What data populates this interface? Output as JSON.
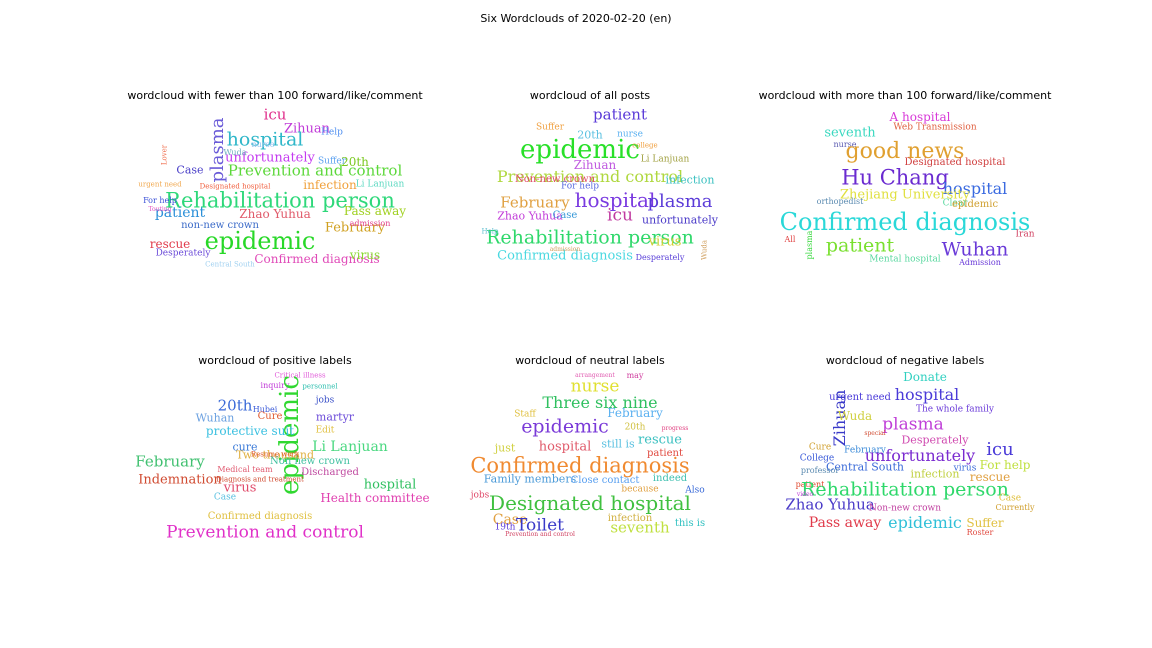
{
  "title": "Six Wordclouds of 2020-02-20 (en)",
  "chart_data": [
    {
      "type": "wordcloud",
      "title": "wordcloud with fewer than 100 forward/like/comment",
      "words": [
        {
          "t": "icu",
          "c": "#e0308c",
          "s": 15
        },
        {
          "t": "Zihuan",
          "c": "#c03ad8",
          "s": 13
        },
        {
          "t": "hospital",
          "c": "#2fb7c9",
          "s": 19
        },
        {
          "t": "Help",
          "c": "#4f8ff0",
          "s": 9
        },
        {
          "t": "plasma",
          "c": "#6a5bd8",
          "s": 18,
          "v": true
        },
        {
          "t": "unfortunately",
          "c": "#c43af0",
          "s": 13
        },
        {
          "t": "20th",
          "c": "#7ac81f",
          "s": 12
        },
        {
          "t": "Case",
          "c": "#4a3fc8",
          "s": 11
        },
        {
          "t": "Prevention and control",
          "c": "#5cd83a",
          "s": 15
        },
        {
          "t": "infection",
          "c": "#f0a03a",
          "s": 12
        },
        {
          "t": "Li Lanjuan",
          "c": "#5ad8c0",
          "s": 9
        },
        {
          "t": "Rehabilitation person",
          "c": "#2ed87a",
          "s": 21
        },
        {
          "t": "patient",
          "c": "#2a8fd8",
          "s": 14
        },
        {
          "t": "Zhao Yuhua",
          "c": "#e05a6a",
          "s": 12
        },
        {
          "t": "Pass away",
          "c": "#a0d020",
          "s": 12
        },
        {
          "t": "non-new crown",
          "c": "#3a6ac8",
          "s": 10
        },
        {
          "t": "February",
          "c": "#d0a020",
          "s": 13
        },
        {
          "t": "epidemic",
          "c": "#28d828",
          "s": 24
        },
        {
          "t": "rescue",
          "c": "#e03a4a",
          "s": 12
        },
        {
          "t": "Desperately",
          "c": "#6a4ad8",
          "s": 9
        },
        {
          "t": "Confirmed diagnosis",
          "c": "#e04ab8",
          "s": 12
        },
        {
          "t": "virus",
          "c": "#8ad830",
          "s": 12
        },
        {
          "t": "admission",
          "c": "#e0408a",
          "s": 8
        },
        {
          "t": "For help",
          "c": "#3a50d8",
          "s": 8
        },
        {
          "t": "urgent need",
          "c": "#f0a850",
          "s": 7
        },
        {
          "t": "Lover",
          "c": "#f07050",
          "s": 7,
          "v": true
        },
        {
          "t": "Suffer",
          "c": "#5aa0f0",
          "s": 9
        },
        {
          "t": "nurse",
          "c": "#90c0f0",
          "s": 8
        },
        {
          "t": "Wuda",
          "c": "#70b0c0",
          "s": 8
        },
        {
          "t": "Central South",
          "c": "#a0d0f0",
          "s": 7
        },
        {
          "t": "Designated hospital",
          "c": "#f06040",
          "s": 7
        },
        {
          "t": "Touting",
          "c": "#e050c0",
          "s": 6
        }
      ]
    },
    {
      "type": "wordcloud",
      "title": "wordcloud of all posts",
      "words": [
        {
          "t": "patient",
          "c": "#5a3ad8",
          "s": 15
        },
        {
          "t": "Suffer",
          "c": "#f0a040",
          "s": 9
        },
        {
          "t": "20th",
          "c": "#5ac0e0",
          "s": 11
        },
        {
          "t": "nurse",
          "c": "#5ab0f0",
          "s": 9
        },
        {
          "t": "epidemic",
          "c": "#28e028",
          "s": 26
        },
        {
          "t": "Li Lanjuan",
          "c": "#a0a040",
          "s": 9
        },
        {
          "t": "Zihuan",
          "c": "#c05ae0",
          "s": 12
        },
        {
          "t": "Prevention and control",
          "c": "#b0d840",
          "s": 16
        },
        {
          "t": "infection",
          "c": "#3ac0c0",
          "s": 11
        },
        {
          "t": "Non-new crown",
          "c": "#e04a6a",
          "s": 10
        },
        {
          "t": "For help",
          "c": "#5a6ae0",
          "s": 9
        },
        {
          "t": "February",
          "c": "#e0a040",
          "s": 15
        },
        {
          "t": "hospital",
          "c": "#7a3ae0",
          "s": 20
        },
        {
          "t": "plasma",
          "c": "#5a3ad8",
          "s": 18
        },
        {
          "t": "Zhao Yuhua",
          "c": "#c03ad8",
          "s": 11
        },
        {
          "t": "Case",
          "c": "#3a9ad8",
          "s": 10
        },
        {
          "t": "icu",
          "c": "#c03aa0",
          "s": 17
        },
        {
          "t": "unfortunately",
          "c": "#4a3ac8",
          "s": 11
        },
        {
          "t": "Rehabilitation person",
          "c": "#2ed86a",
          "s": 19
        },
        {
          "t": "virus",
          "c": "#d0d030",
          "s": 13
        },
        {
          "t": "Confirmed diagnosis",
          "c": "#4ad8e0",
          "s": 13
        },
        {
          "t": "Desperately",
          "c": "#5a40d8",
          "s": 8
        },
        {
          "t": "Help",
          "c": "#60c0d0",
          "s": 7
        },
        {
          "t": "Wuda",
          "c": "#d0a060",
          "s": 7,
          "v": true
        },
        {
          "t": "admission",
          "c": "#d0a060",
          "s": 6
        },
        {
          "t": "college",
          "c": "#f0a040",
          "s": 7
        }
      ]
    },
    {
      "type": "wordcloud",
      "title": "wordcloud with more than 100 forward/like/comment",
      "words": [
        {
          "t": "A hospital",
          "c": "#d83ad8",
          "s": 12
        },
        {
          "t": "Web Transmission",
          "c": "#e06040",
          "s": 9
        },
        {
          "t": "seventh",
          "c": "#3ad8c0",
          "s": 13
        },
        {
          "t": "nurse",
          "c": "#5a5ab0",
          "s": 8
        },
        {
          "t": "good news",
          "c": "#e0a030",
          "s": 22
        },
        {
          "t": "Designated hospital",
          "c": "#d04040",
          "s": 10
        },
        {
          "t": "Hu Chang",
          "c": "#6a2ad0",
          "s": 21
        },
        {
          "t": "hospital",
          "c": "#3a6ae0",
          "s": 16
        },
        {
          "t": "Zhejiang University",
          "c": "#e0e040",
          "s": 13
        },
        {
          "t": "orthopedist",
          "c": "#5a8ab0",
          "s": 8
        },
        {
          "t": "Clear",
          "c": "#5ad8a0",
          "s": 9
        },
        {
          "t": "epidemic",
          "c": "#d0a030",
          "s": 10
        },
        {
          "t": "Confirmed diagnosis",
          "c": "#2ad8d8",
          "s": 24
        },
        {
          "t": "All",
          "c": "#e04040",
          "s": 8
        },
        {
          "t": "Iran",
          "c": "#d04060",
          "s": 9
        },
        {
          "t": "patient",
          "c": "#7ae030",
          "s": 19
        },
        {
          "t": "Wuhan",
          "c": "#6a3ad8",
          "s": 19
        },
        {
          "t": "plasma",
          "c": "#3ad840",
          "s": 8,
          "v": true
        },
        {
          "t": "Mental hospital",
          "c": "#5ad8a0",
          "s": 9
        },
        {
          "t": "Admission",
          "c": "#6a3ad8",
          "s": 8
        }
      ]
    },
    {
      "type": "wordcloud",
      "title": "wordcloud of positive labels",
      "words": [
        {
          "t": "Critical illness",
          "c": "#e05ad8",
          "s": 7
        },
        {
          "t": "inquiry",
          "c": "#c03ad8",
          "s": 8
        },
        {
          "t": "personnel",
          "c": "#30c0b0",
          "s": 7
        },
        {
          "t": "jobs",
          "c": "#3a50c8",
          "s": 9
        },
        {
          "t": "20th",
          "c": "#3a6ad8",
          "s": 15
        },
        {
          "t": "Hubei",
          "c": "#3a5ad8",
          "s": 8
        },
        {
          "t": "Wuhan",
          "c": "#6aa0e0",
          "s": 11
        },
        {
          "t": "Cure",
          "c": "#e05a30",
          "s": 10
        },
        {
          "t": "epidemic",
          "c": "#30d830",
          "s": 26,
          "v": true
        },
        {
          "t": "martyr",
          "c": "#6a4ad8",
          "s": 11
        },
        {
          "t": "protective suit",
          "c": "#3ac0e0",
          "s": 12
        },
        {
          "t": "Edit",
          "c": "#e0c040",
          "s": 9
        },
        {
          "t": "cure",
          "c": "#3a7ad8",
          "s": 11
        },
        {
          "t": "Two thousand",
          "c": "#e0b040",
          "s": 11
        },
        {
          "t": "Li Lanjuan",
          "c": "#4ad880",
          "s": 14
        },
        {
          "t": "February",
          "c": "#40c070",
          "s": 15
        },
        {
          "t": "Medical team",
          "c": "#e05a70",
          "s": 8
        },
        {
          "t": "Discharged",
          "c": "#c04aa0",
          "s": 10
        },
        {
          "t": "virus",
          "c": "#e04a6a",
          "s": 13
        },
        {
          "t": "Indemnation",
          "c": "#d04a30",
          "s": 13
        },
        {
          "t": "hospital",
          "c": "#30c060",
          "s": 13
        },
        {
          "t": "Case",
          "c": "#5ac0e0",
          "s": 9
        },
        {
          "t": "Health committee",
          "c": "#e040b0",
          "s": 12
        },
        {
          "t": "Confirmed diagnosis",
          "c": "#e0c040",
          "s": 10
        },
        {
          "t": "Prevention and control",
          "c": "#e030c8",
          "s": 17
        },
        {
          "t": "Non new crown",
          "c": "#40c0a0",
          "s": 10
        },
        {
          "t": "Diagnosis and treatment",
          "c": "#d04a30",
          "s": 7
        },
        {
          "t": "Resume work",
          "c": "#e05a30",
          "s": 7
        }
      ]
    },
    {
      "type": "wordcloud",
      "title": "wordcloud of neutral labels",
      "words": [
        {
          "t": "may",
          "c": "#d040a0",
          "s": 8
        },
        {
          "t": "nurse",
          "c": "#e0e030",
          "s": 17
        },
        {
          "t": "Three six nine",
          "c": "#30c060",
          "s": 16
        },
        {
          "t": "February",
          "c": "#5ab0f0",
          "s": 12
        },
        {
          "t": "Staff",
          "c": "#e0c040",
          "s": 9
        },
        {
          "t": "epidemic",
          "c": "#7a3ad8",
          "s": 19
        },
        {
          "t": "20th",
          "c": "#d0c040",
          "s": 9
        },
        {
          "t": "hospital",
          "c": "#e05a6a",
          "s": 13
        },
        {
          "t": "still is",
          "c": "#5ac0e0",
          "s": 11
        },
        {
          "t": "rescue",
          "c": "#3ac0c0",
          "s": 13
        },
        {
          "t": "just",
          "c": "#d0d040",
          "s": 11
        },
        {
          "t": "patient",
          "c": "#e04a40",
          "s": 10
        },
        {
          "t": "Confirmed diagnosis",
          "c": "#f08a30",
          "s": 21
        },
        {
          "t": "Family members",
          "c": "#4a9ad8",
          "s": 11
        },
        {
          "t": "Close contact",
          "c": "#5aa0f0",
          "s": 10
        },
        {
          "t": "indeed",
          "c": "#40c0b0",
          "s": 10
        },
        {
          "t": "because",
          "c": "#e0a040",
          "s": 9
        },
        {
          "t": "Also",
          "c": "#3a6ad8",
          "s": 9
        },
        {
          "t": "Designated hospital",
          "c": "#40c040",
          "s": 20
        },
        {
          "t": "Case",
          "c": "#e0a040",
          "s": 14
        },
        {
          "t": "Toilet",
          "c": "#3a3ac8",
          "s": 17
        },
        {
          "t": "infection",
          "c": "#d0b040",
          "s": 10
        },
        {
          "t": "seventh",
          "c": "#c0e040",
          "s": 15
        },
        {
          "t": "this is",
          "c": "#30c0c0",
          "s": 10
        },
        {
          "t": "19th",
          "c": "#5a3ad8",
          "s": 9
        },
        {
          "t": "jobs",
          "c": "#e04a6a",
          "s": 9
        },
        {
          "t": "arrangement",
          "c": "#e05ab0",
          "s": 6
        },
        {
          "t": "progress",
          "c": "#e04080",
          "s": 6
        },
        {
          "t": "Prevention and control",
          "c": "#d04060",
          "s": 6
        }
      ]
    },
    {
      "type": "wordcloud",
      "title": "wordcloud of negative labels",
      "words": [
        {
          "t": "Donate",
          "c": "#30d0c0",
          "s": 12
        },
        {
          "t": "urgent need",
          "c": "#4a3ad8",
          "s": 10
        },
        {
          "t": "hospital",
          "c": "#4a3ad8",
          "s": 16
        },
        {
          "t": "Zihuan",
          "c": "#3a3ac8",
          "s": 16,
          "v": true
        },
        {
          "t": "Wuda",
          "c": "#d0d040",
          "s": 12
        },
        {
          "t": "The whole family",
          "c": "#6a3ad8",
          "s": 9
        },
        {
          "t": "plasma",
          "c": "#c040d8",
          "s": 17
        },
        {
          "t": "Cure",
          "c": "#d0a030",
          "s": 9
        },
        {
          "t": "February",
          "c": "#3a8ad8",
          "s": 9
        },
        {
          "t": "Desperately",
          "c": "#d04ab0",
          "s": 11
        },
        {
          "t": "icu",
          "c": "#4a3ad8",
          "s": 18
        },
        {
          "t": "College",
          "c": "#3a5ad8",
          "s": 9
        },
        {
          "t": "unfortunately",
          "c": "#7a2ad0",
          "s": 16
        },
        {
          "t": "virus",
          "c": "#3a6ad8",
          "s": 9
        },
        {
          "t": "For help",
          "c": "#c0e040",
          "s": 12
        },
        {
          "t": "Central South",
          "c": "#3a6ad8",
          "s": 11
        },
        {
          "t": "infection",
          "c": "#c0d040",
          "s": 11
        },
        {
          "t": "rescue",
          "c": "#e0a040",
          "s": 12
        },
        {
          "t": "professor",
          "c": "#5a8ab0",
          "s": 8
        },
        {
          "t": "patient",
          "c": "#e04a30",
          "s": 8
        },
        {
          "t": "Rehabilitation person",
          "c": "#2ed86a",
          "s": 19
        },
        {
          "t": "Zhao Yuhua",
          "c": "#4a3ac8",
          "s": 15
        },
        {
          "t": "Non-new crown",
          "c": "#c040a0",
          "s": 9
        },
        {
          "t": "Currently",
          "c": "#d0a030",
          "s": 8
        },
        {
          "t": "Pass away",
          "c": "#e03a4a",
          "s": 14
        },
        {
          "t": "epidemic",
          "c": "#30c0d8",
          "s": 16
        },
        {
          "t": "Suffer",
          "c": "#e0c040",
          "s": 12
        },
        {
          "t": "Roster",
          "c": "#e04a40",
          "s": 8
        },
        {
          "t": "Case",
          "c": "#e0c040",
          "s": 9
        },
        {
          "t": "special",
          "c": "#d04a30",
          "s": 6
        },
        {
          "t": "video",
          "c": "#c03ad8",
          "s": 6
        }
      ]
    }
  ]
}
